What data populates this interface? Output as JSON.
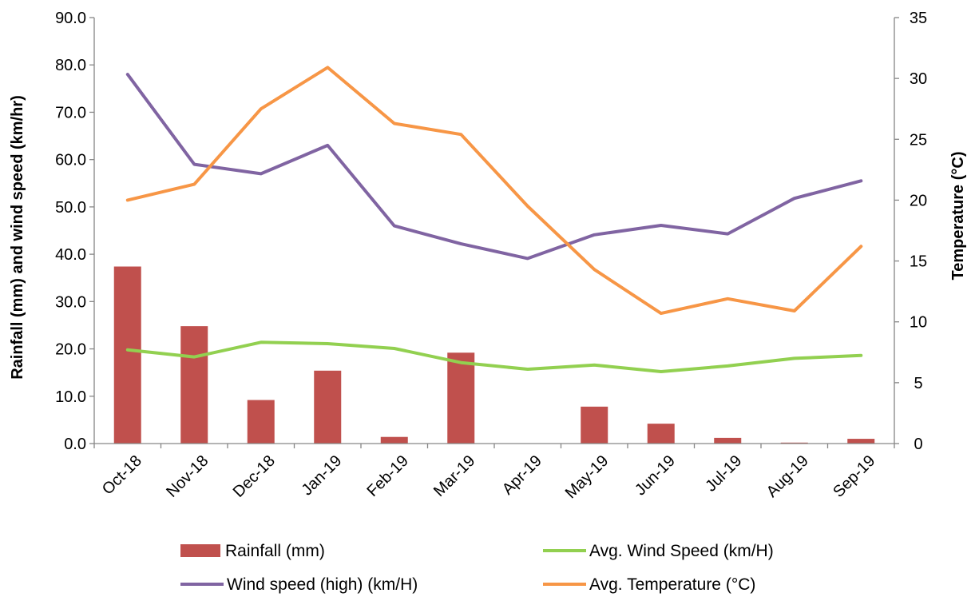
{
  "chart_data": {
    "type": "bar",
    "categories": [
      "Oct-18",
      "Nov-18",
      "Dec-18",
      "Jan-19",
      "Feb-19",
      "Mar-19",
      "Apr-19",
      "May-19",
      "Jun-19",
      "Jul-19",
      "Aug-19",
      "Sep-19"
    ],
    "ylabel": "Rainfall (mm)  and wind speed (km/hr)",
    "y2label": "Temperature  (°C)",
    "ylim": [
      0,
      90
    ],
    "y2lim": [
      0,
      35
    ],
    "yticks": [
      "0.0",
      "10.0",
      "20.0",
      "30.0",
      "40.0",
      "50.0",
      "60.0",
      "70.0",
      "80.0",
      "90.0"
    ],
    "y2ticks": [
      "0",
      "5",
      "10",
      "15",
      "20",
      "25",
      "30",
      "35"
    ],
    "grid": false,
    "legend_position": "bottom",
    "series": [
      {
        "name": "Rainfall (mm)",
        "type": "bar",
        "axis": "left",
        "color": "#c0504d",
        "values": [
          37.4,
          24.8,
          9.2,
          15.4,
          1.4,
          19.2,
          0,
          7.8,
          4.2,
          1.2,
          0.2,
          1.0
        ]
      },
      {
        "name": "Avg. Wind Speed (km/H)",
        "type": "line",
        "axis": "left",
        "color": "#92d050",
        "values": [
          19.8,
          18.3,
          21.4,
          21.1,
          20.1,
          17.1,
          15.7,
          16.6,
          15.2,
          16.4,
          18.0,
          18.6
        ]
      },
      {
        "name": "Wind speed (high) (km/H)",
        "type": "line",
        "axis": "left",
        "color": "#8064a2",
        "values": [
          78.0,
          59.0,
          57.0,
          63.0,
          46.0,
          42.2,
          39.1,
          44.1,
          46.1,
          44.3,
          51.8,
          55.5
        ]
      },
      {
        "name": "Avg. Temperature (°C)",
        "type": "line",
        "axis": "right",
        "color": "#f79646",
        "values": [
          20.0,
          21.3,
          27.5,
          30.9,
          26.3,
          25.4,
          19.5,
          14.3,
          10.7,
          11.9,
          10.9,
          16.2
        ]
      }
    ]
  }
}
